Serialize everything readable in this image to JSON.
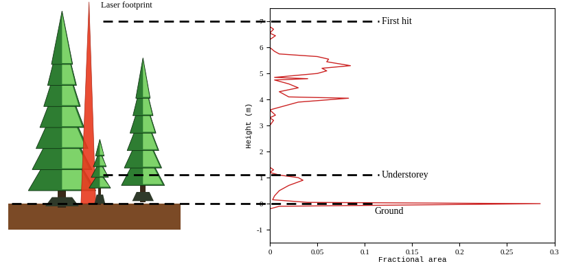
{
  "chart_data": {
    "type": "line",
    "x_label": "Fractional area",
    "y_label": "Height (m)",
    "annotation": "Laser footprint",
    "color": "#cc2222",
    "heights": [
      -0.2,
      -0.1,
      0.0,
      0.05,
      0.15,
      0.3,
      0.5,
      0.7,
      0.9,
      1.0,
      1.1,
      1.2,
      1.3,
      1.4,
      3.0,
      3.2,
      3.3,
      3.4,
      3.6,
      3.7,
      3.9,
      4.05,
      4.1,
      4.3,
      4.45,
      4.6,
      4.75,
      4.8,
      4.85,
      5.0,
      5.1,
      5.2,
      5.3,
      5.45,
      5.55,
      5.65,
      5.75,
      5.85,
      6.0,
      6.3,
      6.45,
      6.55,
      6.7,
      6.8,
      7.0
    ],
    "values": [
      0,
      0.01,
      0.285,
      0.04,
      0.003,
      0.005,
      0.01,
      0.02,
      0.035,
      0.03,
      0.01,
      0,
      0.004,
      0,
      0,
      0.004,
      0,
      0.006,
      0,
      0.01,
      0.03,
      0.083,
      0.02,
      0.01,
      0.03,
      0.02,
      0.005,
      0.04,
      0.005,
      0.05,
      0.06,
      0.055,
      0.085,
      0.06,
      0.062,
      0.05,
      0.01,
      0.005,
      0,
      0,
      0.006,
      0,
      0.004,
      0,
      0
    ],
    "levels": [
      {
        "label": "First hit",
        "height": 7
      },
      {
        "label": "Understorey",
        "height": 1.1
      },
      {
        "label": "Ground",
        "height": 0
      }
    ],
    "xlim": [
      0,
      0.3
    ],
    "xticks": [
      0,
      0.05,
      0.1,
      0.15,
      0.2,
      0.25,
      0.3
    ],
    "ylim": [
      -1.5,
      7.5
    ],
    "yticks": [
      -1,
      0,
      1,
      2,
      3,
      4,
      5,
      6,
      7
    ],
    "grid": false
  }
}
